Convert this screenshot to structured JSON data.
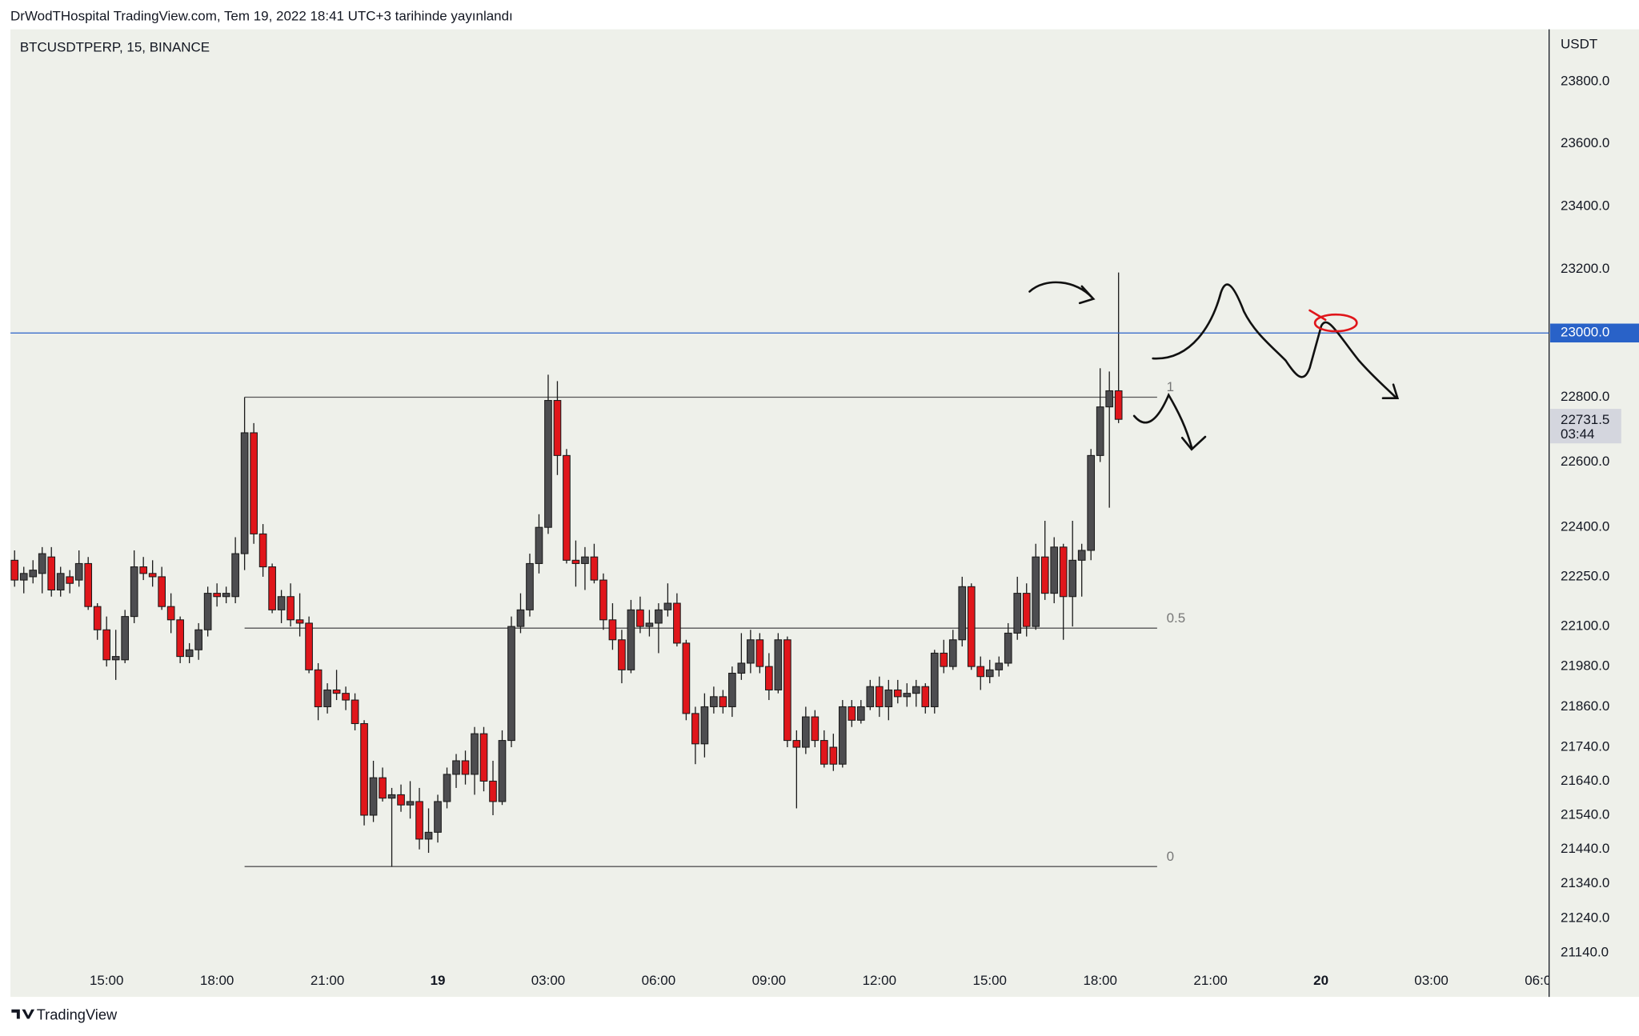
{
  "header": "DrWodTHospital TradingView.com, Tem 19, 2022 18:41 UTC+3 tarihinde yayınlandı",
  "footer": "TradingView",
  "chart_data": {
    "type": "candlestick",
    "title": "BTCUSDTPERP, 15, BINANCE",
    "y_axis_label": "USDT",
    "log_scale": true,
    "up_color": "#4d4d50",
    "down_color": "#e0161b",
    "wick_color": "#1a1a1a",
    "open": [
      22300,
      22240,
      22250,
      22260,
      22310,
      22210,
      22250,
      22240,
      22290,
      22160,
      22090,
      22000,
      22000,
      22130,
      22280,
      22260,
      22250,
      22160,
      22120,
      22010,
      22030,
      22090,
      22200,
      22190,
      22190,
      22320,
      22690,
      22380,
      22280,
      22150,
      22190,
      22120,
      22110,
      21970,
      21860,
      21910,
      21900,
      21880,
      21810,
      21540,
      21650,
      21590,
      21600,
      21570,
      21580,
      21470,
      21490,
      21580,
      21660,
      21700,
      21660,
      21780,
      21640,
      21580,
      21760,
      22100,
      22150,
      22290,
      22400,
      22790,
      22620,
      22300,
      22290,
      22310,
      22240,
      22120,
      22060,
      21970,
      22150,
      22100,
      22110,
      22150,
      22170,
      22050,
      21840,
      21750,
      21860,
      21890,
      21860,
      21960,
      21990,
      22060,
      21980,
      21910,
      22060,
      21760,
      21740,
      21830,
      21760,
      21740,
      21690,
      21860,
      21820,
      21860,
      21920,
      21860,
      21910,
      21890,
      21900,
      21920,
      21860,
      22020,
      21980,
      22060,
      22220,
      21980,
      21950,
      21970,
      21990,
      22080,
      22200,
      22100,
      22310,
      22200,
      22340,
      22190,
      22300,
      22330,
      22620,
      22770,
      22820
    ],
    "high": [
      22330,
      22280,
      22300,
      22340,
      22340,
      22280,
      22270,
      22330,
      22310,
      22170,
      22130,
      22090,
      22150,
      22330,
      22310,
      22300,
      22280,
      22200,
      22130,
      22050,
      22110,
      22220,
      22230,
      22220,
      22370,
      22800,
      22720,
      22410,
      22290,
      22210,
      22230,
      22200,
      22130,
      21990,
      21930,
      21970,
      21920,
      21900,
      21820,
      21700,
      21680,
      21620,
      21630,
      21640,
      21620,
      21560,
      21600,
      21680,
      21720,
      21730,
      21800,
      21800,
      21700,
      21790,
      22130,
      22200,
      22320,
      22440,
      22870,
      22850,
      22640,
      22360,
      22340,
      22350,
      22260,
      22170,
      22090,
      22180,
      22190,
      22150,
      22170,
      22230,
      22200,
      22060,
      21860,
      21900,
      21920,
      21910,
      21980,
      22080,
      22090,
      22080,
      22020,
      22080,
      22070,
      21790,
      21860,
      21850,
      21790,
      21780,
      21880,
      21880,
      21880,
      21940,
      21950,
      21940,
      21940,
      21930,
      21940,
      21930,
      22030,
      22060,
      22090,
      22250,
      22230,
      22010,
      22000,
      22010,
      22110,
      22250,
      22230,
      22350,
      22420,
      22370,
      22350,
      22420,
      22350,
      22640,
      22890,
      22880,
      23190
    ],
    "low": [
      22220,
      22200,
      22230,
      22200,
      22190,
      22190,
      22200,
      22220,
      22150,
      22060,
      21980,
      21940,
      21990,
      22110,
      22240,
      22220,
      22150,
      22080,
      21990,
      21990,
      22000,
      22070,
      22160,
      22170,
      22170,
      22270,
      22350,
      22250,
      22140,
      22110,
      22100,
      22070,
      21960,
      21820,
      21840,
      21880,
      21850,
      21790,
      21510,
      21520,
      21580,
      21390,
      21550,
      21530,
      21440,
      21430,
      21460,
      21560,
      21620,
      21630,
      21600,
      21610,
      21540,
      21570,
      21740,
      22080,
      22130,
      22260,
      22380,
      22560,
      22290,
      22220,
      22210,
      22230,
      22090,
      22030,
      21930,
      21960,
      22080,
      22070,
      22020,
      22130,
      22040,
      21820,
      21690,
      21710,
      21840,
      21840,
      21830,
      21940,
      21960,
      21960,
      21880,
      21900,
      21740,
      21560,
      21720,
      21740,
      21680,
      21670,
      21680,
      21800,
      21810,
      21850,
      21830,
      21820,
      21870,
      21860,
      21860,
      21840,
      21840,
      21960,
      21970,
      22040,
      21970,
      21910,
      21930,
      21950,
      21980,
      22060,
      22070,
      22090,
      22180,
      22170,
      22060,
      22100,
      22190,
      22300,
      22600,
      22460,
      22720
    ],
    "close": [
      22240,
      22260,
      22270,
      22320,
      22210,
      22260,
      22230,
      22290,
      22160,
      22090,
      22000,
      22010,
      22130,
      22280,
      22260,
      22250,
      22160,
      22120,
      22010,
      22030,
      22090,
      22200,
      22190,
      22200,
      22320,
      22690,
      22380,
      22280,
      22150,
      22190,
      22120,
      22110,
      21970,
      21860,
      21910,
      21900,
      21880,
      21810,
      21540,
      21650,
      21590,
      21600,
      21570,
      21580,
      21470,
      21490,
      21580,
      21660,
      21700,
      21660,
      21780,
      21640,
      21580,
      21760,
      22100,
      22150,
      22290,
      22400,
      22790,
      22620,
      22300,
      22290,
      22310,
      22240,
      22120,
      22060,
      21970,
      22150,
      22100,
      22110,
      22150,
      22170,
      22050,
      21840,
      21750,
      21860,
      21890,
      21860,
      21960,
      21990,
      22060,
      21980,
      21910,
      22060,
      21760,
      21740,
      21830,
      21760,
      21690,
      21690,
      21860,
      21820,
      21860,
      21920,
      21860,
      21910,
      21890,
      21900,
      21920,
      21860,
      22020,
      21980,
      22060,
      22220,
      21980,
      21950,
      21970,
      21990,
      22080,
      22200,
      22100,
      22310,
      22200,
      22340,
      22190,
      22300,
      22330,
      22620,
      22770,
      22820,
      22731.5
    ],
    "xlim": [
      -0.45,
      166.8
    ],
    "xticks": [
      {
        "value": 10,
        "label": "15:00"
      },
      {
        "value": 22,
        "label": "18:00"
      },
      {
        "value": 34,
        "label": "21:00"
      },
      {
        "value": 46,
        "label": "19",
        "bold": true
      },
      {
        "value": 58,
        "label": "03:00"
      },
      {
        "value": 70,
        "label": "06:00"
      },
      {
        "value": 82,
        "label": "09:00"
      },
      {
        "value": 94,
        "label": "12:00"
      },
      {
        "value": 106,
        "label": "15:00"
      },
      {
        "value": 118,
        "label": "18:00"
      },
      {
        "value": 130,
        "label": "21:00"
      },
      {
        "value": 142,
        "label": "20",
        "bold": true
      },
      {
        "value": 154,
        "label": "03:00"
      },
      {
        "value": 166,
        "label": "06:00"
      }
    ],
    "ylim": [
      21110,
      23970
    ],
    "yticks": [
      {
        "value": 23800,
        "label": "23800.0"
      },
      {
        "value": 23600,
        "label": "23600.0"
      },
      {
        "value": 23400,
        "label": "23400.0"
      },
      {
        "value": 23200,
        "label": "23200.0"
      },
      {
        "value": 22800,
        "label": "22800.0"
      },
      {
        "value": 22600,
        "label": "22600.0"
      },
      {
        "value": 22400,
        "label": "22400.0"
      },
      {
        "value": 22250,
        "label": "22250.0"
      },
      {
        "value": 22100,
        "label": "22100.0"
      },
      {
        "value": 21980,
        "label": "21980.0"
      },
      {
        "value": 21860,
        "label": "21860.0"
      },
      {
        "value": 21740,
        "label": "21740.0"
      },
      {
        "value": 21640,
        "label": "21640.0"
      },
      {
        "value": 21540,
        "label": "21540.0"
      },
      {
        "value": 21440,
        "label": "21440.0"
      },
      {
        "value": 21340,
        "label": "21340.0"
      },
      {
        "value": 21240,
        "label": "21240.0"
      },
      {
        "value": 21140,
        "label": "21140.0"
      }
    ],
    "hline": {
      "value": 23000,
      "label": "23000.0",
      "color": "#2962c8"
    },
    "last_price": 22731.5,
    "countdown": "03:44",
    "fib": {
      "high": 22800,
      "low": 21390,
      "levels": [
        1,
        0.5,
        0
      ],
      "color": "#555555"
    }
  }
}
